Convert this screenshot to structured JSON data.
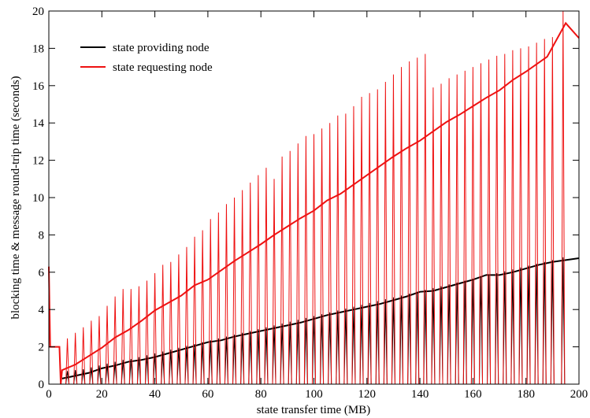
{
  "chart_data": {
    "type": "line",
    "title": "",
    "xlabel": "state transfer time (MB)",
    "ylabel": "blocking time & message round-trip time (seconds)",
    "xlim": [
      0,
      200
    ],
    "ylim": [
      0,
      20
    ],
    "x_ticks": [
      0,
      20,
      40,
      60,
      80,
      100,
      120,
      140,
      160,
      180,
      200
    ],
    "y_ticks": [
      0,
      2,
      4,
      6,
      8,
      10,
      12,
      14,
      16,
      18,
      20
    ],
    "grid": false,
    "legend_position": "top-left",
    "series": [
      {
        "name": "state providing node",
        "color": "#000000",
        "trend": {
          "x": [
            5,
            10,
            15,
            20,
            25,
            30,
            35,
            40,
            45,
            50,
            55,
            60,
            65,
            70,
            75,
            80,
            85,
            90,
            95,
            100,
            105,
            110,
            115,
            120,
            125,
            130,
            135,
            140,
            145,
            150,
            155,
            160,
            165,
            170,
            175,
            180,
            185,
            190,
            195,
            200
          ],
          "y": [
            0.3,
            0.45,
            0.6,
            0.85,
            1.0,
            1.2,
            1.3,
            1.45,
            1.65,
            1.85,
            2.05,
            2.25,
            2.35,
            2.55,
            2.7,
            2.85,
            3.0,
            3.15,
            3.3,
            3.5,
            3.7,
            3.85,
            4.0,
            4.15,
            4.3,
            4.5,
            4.7,
            4.95,
            5.0,
            5.2,
            5.4,
            5.6,
            5.85,
            5.85,
            6.0,
            6.2,
            6.4,
            6.55,
            6.65,
            6.75
          ]
        },
        "spikes": {
          "x": [
            7,
            10,
            13,
            16,
            19,
            22,
            25,
            28,
            31,
            34,
            37,
            40,
            43,
            46,
            49,
            52,
            55,
            58,
            61,
            64,
            67,
            70,
            73,
            76,
            79,
            82,
            85,
            88,
            91,
            94,
            97,
            100,
            103,
            106,
            109,
            112,
            115,
            118,
            121,
            124,
            127,
            130,
            133,
            136,
            139,
            142,
            145,
            148,
            151,
            154,
            157,
            160,
            163,
            166,
            169,
            172,
            175,
            178,
            181,
            184,
            187,
            190,
            194
          ],
          "y": [
            0.7,
            0.75,
            0.8,
            0.9,
            1.0,
            1.1,
            1.2,
            1.3,
            1.35,
            1.45,
            1.55,
            1.65,
            1.75,
            1.85,
            1.95,
            2.05,
            2.15,
            2.25,
            2.35,
            2.45,
            2.55,
            2.65,
            2.75,
            2.85,
            2.95,
            3.05,
            3.15,
            3.25,
            3.35,
            3.45,
            3.55,
            3.65,
            3.75,
            3.85,
            3.95,
            4.05,
            4.15,
            4.25,
            4.35,
            4.45,
            4.55,
            4.65,
            4.75,
            4.85,
            4.95,
            5.05,
            5.15,
            5.25,
            5.35,
            5.45,
            5.55,
            5.65,
            5.75,
            5.85,
            5.95,
            6.05,
            6.15,
            6.25,
            6.35,
            6.45,
            6.55,
            6.65,
            6.8
          ]
        }
      },
      {
        "name": "state requesting node",
        "color": "#ee1111",
        "trend": {
          "x": [
            0,
            0.5,
            4,
            4.5,
            5,
            10,
            15,
            20,
            25,
            30,
            35,
            40,
            45,
            50,
            55,
            60,
            65,
            70,
            75,
            80,
            85,
            90,
            95,
            100,
            105,
            110,
            115,
            120,
            125,
            130,
            135,
            140,
            145,
            150,
            155,
            160,
            165,
            170,
            175,
            180,
            185,
            188,
            195,
            200
          ],
          "y": [
            6.3,
            2.0,
            2.0,
            0.0,
            0.75,
            1.05,
            1.5,
            1.95,
            2.5,
            2.9,
            3.4,
            3.95,
            4.35,
            4.75,
            5.3,
            5.6,
            6.1,
            6.6,
            7.05,
            7.5,
            8.0,
            8.45,
            8.9,
            9.3,
            9.85,
            10.2,
            10.7,
            11.2,
            11.7,
            12.2,
            12.65,
            13.05,
            13.55,
            14.05,
            14.45,
            14.9,
            15.35,
            15.75,
            16.3,
            16.75,
            17.25,
            17.55,
            19.35,
            18.55
          ]
        },
        "spikes": {
          "x": [
            7,
            10,
            13,
            16,
            19,
            22,
            25,
            28,
            31,
            34,
            37,
            40,
            43,
            46,
            49,
            52,
            55,
            58,
            61,
            64,
            67,
            70,
            73,
            76,
            79,
            82,
            85,
            88,
            91,
            94,
            97,
            100,
            103,
            106,
            109,
            112,
            115,
            118,
            121,
            124,
            127,
            130,
            133,
            136,
            139,
            142,
            145,
            148,
            151,
            154,
            157,
            160,
            163,
            166,
            169,
            172,
            175,
            178,
            181,
            184,
            187,
            190,
            194
          ],
          "y": [
            2.45,
            2.75,
            3.05,
            3.4,
            3.65,
            4.2,
            4.7,
            5.1,
            5.1,
            5.25,
            5.55,
            5.95,
            6.4,
            6.55,
            6.95,
            7.35,
            7.9,
            8.25,
            8.85,
            9.2,
            9.65,
            10.0,
            10.4,
            10.8,
            11.2,
            11.6,
            11.0,
            12.2,
            12.5,
            12.9,
            13.3,
            13.4,
            13.7,
            14.0,
            14.4,
            14.5,
            14.9,
            15.4,
            15.6,
            15.8,
            16.2,
            16.6,
            17.0,
            17.3,
            17.5,
            17.7,
            15.9,
            16.1,
            16.4,
            16.6,
            16.8,
            17.0,
            17.2,
            17.4,
            17.6,
            17.7,
            17.9,
            18.0,
            18.1,
            18.3,
            18.5,
            18.6,
            20.0
          ]
        }
      }
    ]
  }
}
